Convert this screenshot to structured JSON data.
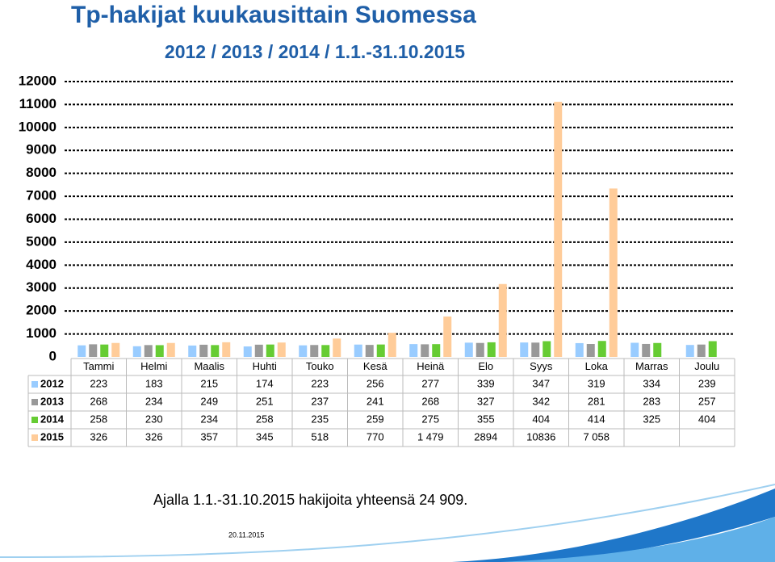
{
  "chart_data": {
    "type": "bar",
    "title": "Tp-hakijat kuukausittain Suomessa",
    "subtitle": "2012 / 2013 / 2014 / 1.1.-31.10.2015",
    "categories": [
      "Tammi",
      "Helmi",
      "Maalis",
      "Huhti",
      "Touko",
      "Kesä",
      "Heinä",
      "Elo",
      "Syys",
      "Loka",
      "Marras",
      "Joulu"
    ],
    "series": [
      {
        "name": "2012",
        "color": "#99ccff",
        "values": [
          223,
          183,
          215,
          174,
          223,
          256,
          277,
          339,
          347,
          319,
          334,
          239
        ]
      },
      {
        "name": "2013",
        "color": "#999999",
        "values": [
          268,
          234,
          249,
          251,
          237,
          241,
          268,
          327,
          342,
          281,
          283,
          257
        ]
      },
      {
        "name": "2014",
        "color": "#66cc33",
        "values": [
          258,
          230,
          234,
          258,
          235,
          259,
          275,
          355,
          404,
          414,
          325,
          404
        ]
      },
      {
        "name": "2015",
        "color": "#ffcc99",
        "values": [
          326,
          326,
          357,
          345,
          518,
          770,
          1479,
          2894,
          10836,
          7058,
          null,
          null
        ],
        "value_labels": [
          null,
          null,
          null,
          null,
          null,
          null,
          "1 479",
          null,
          null,
          "7 058",
          null,
          null
        ]
      }
    ],
    "ylim": [
      0,
      12000
    ],
    "yticks": [
      0,
      1000,
      2000,
      3000,
      4000,
      5000,
      6000,
      7000,
      8000,
      9000,
      10000,
      11000,
      12000
    ],
    "grid": true
  },
  "footer": {
    "summary": "Ajalla 1.1.-31.10.2015 hakijoita yhteensä 24 909.",
    "date": "20.11.2015"
  }
}
